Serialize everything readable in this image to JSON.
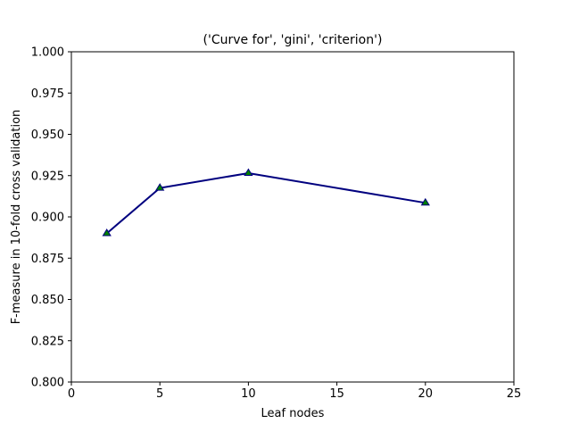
{
  "chart_data": {
    "type": "line",
    "title": "('Curve for', 'gini', 'criterion')",
    "xlabel": "Leaf nodes",
    "ylabel": "F-measure in 10-fold cross validation",
    "xlim": [
      0,
      25
    ],
    "ylim": [
      0.8,
      1.0
    ],
    "xticks": [
      0,
      5,
      10,
      15,
      20,
      25
    ],
    "xtick_labels": [
      "0",
      "5",
      "10",
      "15",
      "20",
      "25"
    ],
    "yticks": [
      0.8,
      0.825,
      0.85,
      0.875,
      0.9,
      0.925,
      0.95,
      0.975,
      1.0
    ],
    "ytick_labels": [
      "0.800",
      "0.825",
      "0.850",
      "0.875",
      "0.900",
      "0.925",
      "0.950",
      "0.975",
      "1.000"
    ],
    "grid": false,
    "series": [
      {
        "x": [
          2,
          5,
          10,
          20
        ],
        "y": [
          0.89,
          0.9175,
          0.9265,
          0.9085
        ],
        "line_color": "#00007f",
        "marker": "triangle",
        "marker_color": "#007f00"
      }
    ]
  }
}
